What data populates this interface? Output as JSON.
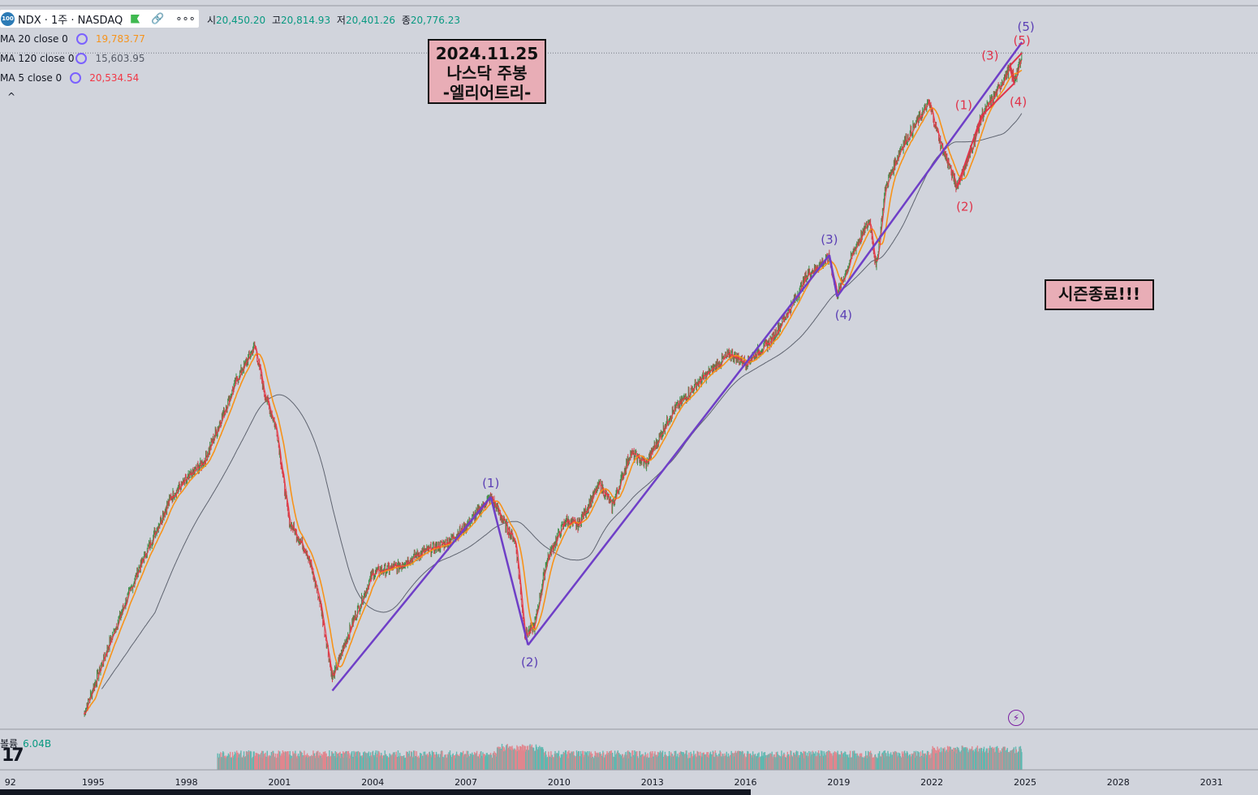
{
  "header": {
    "symbol_badge": "100",
    "symbol": "NDX · 1주 · NASDAQ",
    "more": "∘∘∘",
    "ohlc": [
      {
        "label": "시",
        "value": "20,450.20"
      },
      {
        "label": "고",
        "value": "20,814.93"
      },
      {
        "label": "저",
        "value": "20,401.26"
      },
      {
        "label": "종",
        "value": "20,776.23"
      }
    ]
  },
  "indicators": [
    {
      "label": "MA 20 close 0",
      "value": "19,783.77",
      "color": "#f7931a"
    },
    {
      "label": "MA 120 close 0",
      "value": "15,603.95",
      "color": "#555a66"
    },
    {
      "label": "MA 5 close 0",
      "value": "20,534.54",
      "color": "#f23645"
    }
  ],
  "collapse_label": "^",
  "annotations": {
    "main_lines": [
      "2024.11.25",
      "나스닥 주봉",
      "-엘리어트리-"
    ],
    "end": "시즌종료!!!"
  },
  "volume": {
    "label": "볼륨",
    "value": "6.04B"
  },
  "logo": "17",
  "colors": {
    "background": "#d1d4dc",
    "wave_line": "#6f3fc7",
    "wave_label_primary": "#5b3fb5",
    "wave_label_secondary": "#e0334a",
    "ma20": "#f7931a",
    "ma120": "#5f6470",
    "ma5": "#f23645",
    "candle_up": "#3f8f4a",
    "candle_down": "#d0404a",
    "volume_up": "#5fb8b0",
    "volume_down": "#e0868e"
  },
  "chart_data": {
    "type": "line",
    "scale": "log",
    "x_ticks": [
      "92",
      "1995",
      "1998",
      "2001",
      "2004",
      "2007",
      "2010",
      "2013",
      "2016",
      "2019",
      "2022",
      "2025",
      "2028",
      "2031"
    ],
    "xlim": [
      1992.0,
      2032.5
    ],
    "ylim": [
      650,
      28000
    ],
    "last_close": 20776.23,
    "price_path": [
      [
        1994.7,
        700
      ],
      [
        1995.5,
        1000
      ],
      [
        1996.5,
        1500
      ],
      [
        1997.5,
        2150
      ],
      [
        1998.6,
        2600
      ],
      [
        1999.6,
        3900
      ],
      [
        2000.2,
        4700
      ],
      [
        2000.5,
        3700
      ],
      [
        2000.9,
        3050
      ],
      [
        2001.3,
        1900
      ],
      [
        2001.9,
        1600
      ],
      [
        2002.3,
        1250
      ],
      [
        2002.7,
        840
      ],
      [
        2003.3,
        1100
      ],
      [
        2004.0,
        1450
      ],
      [
        2004.8,
        1500
      ],
      [
        2005.5,
        1600
      ],
      [
        2006.4,
        1700
      ],
      [
        2007.0,
        1850
      ],
      [
        2007.8,
        2150
      ],
      [
        2008.2,
        1900
      ],
      [
        2008.6,
        1700
      ],
      [
        2008.9,
        1050
      ],
      [
        2009.2,
        1100
      ],
      [
        2009.6,
        1550
      ],
      [
        2010.2,
        1900
      ],
      [
        2010.6,
        1850
      ],
      [
        2011.3,
        2300
      ],
      [
        2011.7,
        2050
      ],
      [
        2012.3,
        2700
      ],
      [
        2012.8,
        2550
      ],
      [
        2013.6,
        3300
      ],
      [
        2014.5,
        3900
      ],
      [
        2015.5,
        4500
      ],
      [
        2016.0,
        4300
      ],
      [
        2016.8,
        4800
      ],
      [
        2017.5,
        5800
      ],
      [
        2018.0,
        6800
      ],
      [
        2018.7,
        7400
      ],
      [
        2018.95,
        6100
      ],
      [
        2019.5,
        7700
      ],
      [
        2020.0,
        9000
      ],
      [
        2020.2,
        7000
      ],
      [
        2020.5,
        10600
      ],
      [
        2021.0,
        13000
      ],
      [
        2021.9,
        16500
      ],
      [
        2022.3,
        13200
      ],
      [
        2022.8,
        10700
      ],
      [
        2023.2,
        12500
      ],
      [
        2023.6,
        15400
      ],
      [
        2024.0,
        17000
      ],
      [
        2024.5,
        19700
      ],
      [
        2024.65,
        18500
      ],
      [
        2024.9,
        20800
      ]
    ],
    "series": [
      {
        "name": "MA 20 close 0",
        "last": 19783.77
      },
      {
        "name": "MA 120 close 0",
        "last": 15603.95
      },
      {
        "name": "MA 5 close 0",
        "last": 20534.54
      }
    ],
    "primary_wave": {
      "points": [
        {
          "label": "(1)",
          "x": 2007.8,
          "y": 2150
        },
        {
          "label": "(2)",
          "x": 2009.0,
          "y": 1000
        },
        {
          "label": "(3)",
          "x": 2018.7,
          "y": 7500
        },
        {
          "label": "(4)",
          "x": 2018.95,
          "y": 6050
        },
        {
          "label": "(5)",
          "x": 2024.9,
          "y": 22500
        }
      ],
      "start": {
        "x": 2002.7,
        "y": 790
      }
    },
    "secondary_wave": {
      "points": [
        {
          "label": "(1)",
          "x": 2023.6,
          "y": 15400
        },
        {
          "label": "(2)",
          "x": 2022.8,
          "y": 10600
        },
        {
          "label": "(3)",
          "x": 2024.5,
          "y": 19900
        },
        {
          "label": "(4)",
          "x": 2024.65,
          "y": 18200
        },
        {
          "label": "(5)",
          "x": 2024.9,
          "y": 21300
        }
      ]
    },
    "resistance_level": 21300
  }
}
